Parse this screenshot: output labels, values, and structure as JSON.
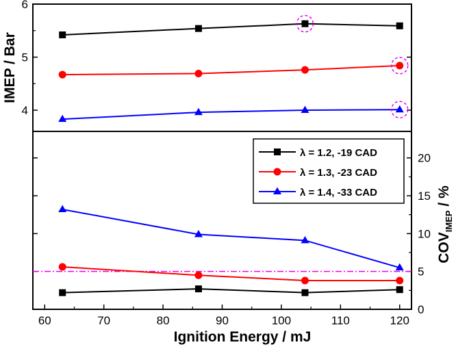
{
  "chart_data": [
    {
      "panel": "top",
      "type": "line",
      "ylabel": "IMEP / Bar",
      "ylim": [
        3.6,
        6
      ],
      "yticks": [
        4,
        5,
        6
      ],
      "ytick_labels": [
        "4",
        "5",
        "6"
      ],
      "x": [
        63,
        86,
        104,
        120
      ],
      "series": [
        {
          "name": "λ = 1.2, -19 CAD",
          "values": [
            5.42,
            5.54,
            5.63,
            5.59
          ],
          "color": "#000000",
          "marker": "square",
          "highlight_index": 2
        },
        {
          "name": "λ = 1.3, -23 CAD",
          "values": [
            4.67,
            4.69,
            4.76,
            4.84
          ],
          "color": "#ff0000",
          "marker": "circle",
          "highlight_index": 3
        },
        {
          "name": "λ = 1.4, -33 CAD",
          "values": [
            3.83,
            3.96,
            4.0,
            4.01
          ],
          "color": "#0000ff",
          "marker": "triangle",
          "highlight_index": 3
        }
      ],
      "highlight_color": "#ee00ee"
    },
    {
      "panel": "bottom",
      "type": "line",
      "xlabel": "Ignition Energy / mJ",
      "ylabel_main": "COV",
      "ylabel_sub": "IMEP",
      "ylabel_suffix": " / %",
      "xlim": [
        58,
        122
      ],
      "xticks": [
        60,
        70,
        80,
        90,
        100,
        110,
        120
      ],
      "xtick_labels": [
        "60",
        "70",
        "80",
        "90",
        "100",
        "110",
        "120"
      ],
      "ylim": [
        0,
        23.5
      ],
      "yticks": [
        0,
        5,
        10,
        15,
        20
      ],
      "ytick_labels": [
        "0",
        "5",
        "10",
        "15",
        "20"
      ],
      "reference_line": {
        "value": 5,
        "color": "#ee00ee",
        "style": "dash-dot"
      },
      "x": [
        63,
        86,
        104,
        120
      ],
      "series": [
        {
          "name": "λ = 1.2, -19 CAD",
          "values": [
            2.2,
            2.7,
            2.2,
            2.6
          ],
          "color": "#000000",
          "marker": "square"
        },
        {
          "name": "λ = 1.3, -23 CAD",
          "values": [
            5.6,
            4.5,
            3.8,
            3.8
          ],
          "color": "#ff0000",
          "marker": "circle"
        },
        {
          "name": "λ = 1.4, -33 CAD",
          "values": [
            13.2,
            9.9,
            9.1,
            5.5
          ],
          "color": "#0000ff",
          "marker": "triangle"
        }
      ],
      "legend": {
        "position": "top-right"
      }
    }
  ]
}
